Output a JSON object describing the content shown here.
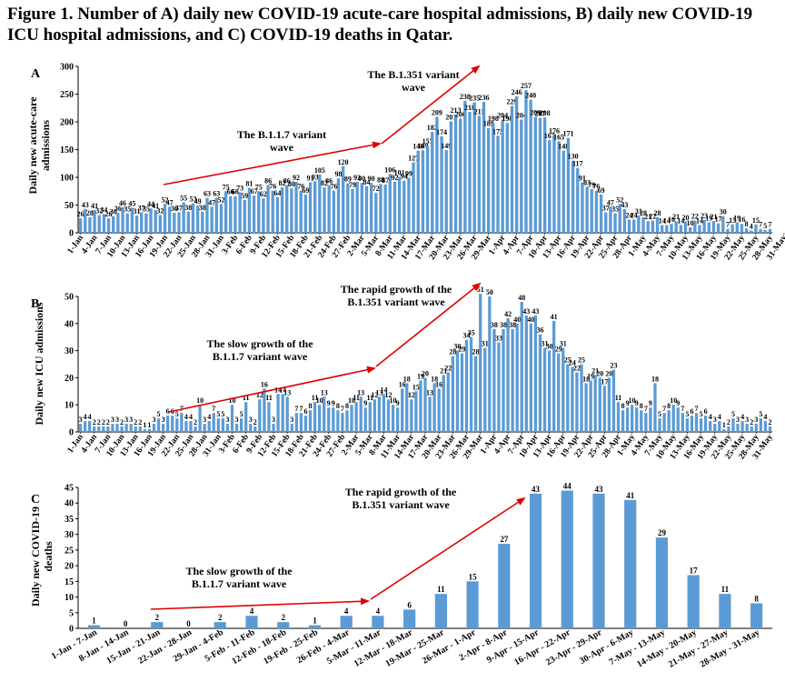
{
  "figure": {
    "title": "Figure 1. Number of A) daily new COVID-19 acute-care hospital admissions, B) daily new COVID-19 ICU hospital admissions, and C) COVID-19 deaths in Qatar."
  },
  "colors": {
    "bar": "#5b9bd5",
    "arrow": "#e00000",
    "text": "#000000"
  },
  "chart_data": [
    {
      "panel": "A",
      "type": "bar",
      "ylabel": "Daily new acute-care admissions",
      "ylim": [
        0,
        300
      ],
      "yticks": [
        0,
        50,
        100,
        150,
        200,
        250,
        300
      ],
      "start_date": "1-Jan",
      "x_tick_labels": [
        "1-Jan",
        "4-Jan",
        "7-Jan",
        "10-Jan",
        "13-Jan",
        "16-Jan",
        "19-Jan",
        "22-Jan",
        "25-Jan",
        "28-Jan",
        "31-Jan",
        "3-Feb",
        "6-Feb",
        "9-Feb",
        "12-Feb",
        "15-Feb",
        "18-Feb",
        "21-Feb",
        "24-Feb",
        "27-Feb",
        "2-Mar",
        "5-Mar",
        "8-Mar",
        "11-Mar",
        "14-Mar",
        "17-Mar",
        "20-Mar",
        "23-Mar",
        "26-Mar",
        "29-Mar",
        "1-Apr",
        "4-Apr",
        "7-Apr",
        "10-Apr",
        "13-Apr",
        "16-Apr",
        "19-Apr",
        "22-Apr",
        "25-Apr",
        "28-Apr",
        "1-May",
        "4-May",
        "7-May",
        "10-May",
        "13-May",
        "16-May",
        "19-May",
        "22-May",
        "25-May",
        "28-May",
        "31-May"
      ],
      "values": [
        26,
        43,
        28,
        41,
        32,
        34,
        26,
        30,
        36,
        46,
        35,
        45,
        31,
        37,
        35,
        44,
        41,
        32,
        52,
        47,
        36,
        37,
        55,
        38,
        53,
        49,
        38,
        63,
        47,
        63,
        52,
        75,
        66,
        66,
        73,
        59,
        81,
        67,
        75,
        62,
        86,
        76,
        64,
        82,
        86,
        80,
        92,
        76,
        69,
        91,
        93,
        105,
        82,
        86,
        76,
        98,
        120,
        89,
        79,
        92,
        90,
        84,
        90,
        72,
        88,
        87,
        106,
        92,
        101,
        94,
        99,
        127,
        148,
        149,
        157,
        182,
        209,
        174,
        149,
        201,
        213,
        206,
        238,
        218,
        235,
        211,
        236,
        189,
        198,
        175,
        204,
        198,
        229,
        246,
        204,
        257,
        240,
        209,
        207,
        208,
        167,
        176,
        165,
        148,
        171,
        130,
        117,
        91,
        83,
        79,
        76,
        69,
        37,
        47,
        35,
        52,
        43,
        24,
        24,
        31,
        28,
        21,
        22,
        28,
        14,
        14,
        16,
        21,
        14,
        20,
        10,
        22,
        14,
        23,
        19,
        21,
        17,
        30,
        7,
        15,
        19,
        16,
        8,
        4,
        15,
        7,
        5,
        7
      ],
      "annotations": [
        {
          "text": "The B.1.1.7 variant wave"
        },
        {
          "text": "The B.1.351 variant wave"
        }
      ]
    },
    {
      "panel": "B",
      "type": "bar",
      "ylabel": "Daily new ICU admissions",
      "ylim": [
        0,
        50
      ],
      "yticks": [
        0,
        10,
        20,
        30,
        40,
        50
      ],
      "start_date": "1-Jan",
      "x_tick_labels": [
        "1-Jan",
        "4-Jan",
        "7-Jan",
        "10-Jan",
        "13-Jan",
        "16-Jan",
        "19-Jan",
        "22-Jan",
        "25-Jan",
        "28-Jan",
        "31-Jan",
        "3-Feb",
        "6-Feb",
        "9-Feb",
        "12-Feb",
        "15-Feb",
        "18-Feb",
        "21-Feb",
        "24-Feb",
        "27-Feb",
        "2-Mar",
        "5-Mar",
        "8-Mar",
        "11-Mar",
        "14-Mar",
        "17-Mar",
        "20-Mar",
        "23-Mar",
        "26-Mar",
        "29-Mar",
        "1-Apr",
        "4-Apr",
        "7-Apr",
        "10-Apr",
        "13-Apr",
        "16-Apr",
        "19-Apr",
        "22-Apr",
        "25-Apr",
        "28-Apr",
        "1-May",
        "4-May",
        "7-May",
        "10-May",
        "13-May",
        "16-May",
        "19-May",
        "22-May",
        "25-May",
        "28-May",
        "31-May"
      ],
      "values": [
        3,
        4,
        4,
        2,
        2,
        2,
        2,
        3,
        3,
        2,
        3,
        3,
        2,
        2,
        1,
        1,
        3,
        5,
        3,
        6,
        6,
        5,
        7,
        4,
        4,
        2,
        10,
        3,
        4,
        7,
        5,
        5,
        3,
        10,
        3,
        5,
        11,
        3,
        2,
        12,
        16,
        11,
        3,
        14,
        14,
        13,
        3,
        7,
        7,
        6,
        8,
        11,
        10,
        13,
        9,
        9,
        8,
        7,
        8,
        10,
        11,
        13,
        9,
        11,
        12,
        13,
        14,
        12,
        10,
        9,
        16,
        18,
        12,
        15,
        19,
        20,
        13,
        18,
        16,
        21,
        22,
        28,
        30,
        29,
        34,
        35,
        28,
        51,
        31,
        50,
        38,
        33,
        38,
        42,
        38,
        40,
        48,
        43,
        40,
        43,
        36,
        31,
        30,
        41,
        29,
        31,
        25,
        24,
        22,
        25,
        18,
        19,
        21,
        20,
        17,
        20,
        23,
        11,
        8,
        9,
        10,
        9,
        8,
        7,
        9,
        18,
        5,
        7,
        8,
        10,
        9,
        7,
        5,
        6,
        7,
        5,
        6,
        4,
        3,
        4,
        1,
        2,
        5,
        3,
        4,
        3,
        2,
        3,
        5,
        4,
        2
      ],
      "annotations": [
        {
          "text": "The slow growth of the B.1.1.7 variant wave"
        },
        {
          "text": "The rapid growth of the B.1.351 variant wave"
        }
      ]
    },
    {
      "panel": "C",
      "type": "bar",
      "ylabel": "Daily new COVID-19 deaths",
      "ylim": [
        0,
        45
      ],
      "yticks": [
        0,
        5,
        10,
        15,
        20,
        25,
        30,
        35,
        40,
        45
      ],
      "categories": [
        "1-Jan - 7-Jan",
        "8-Jan - 14-Jan",
        "15-Jan - 21-Jan",
        "22-Jan - 28-Jan",
        "29-Jan - 4-Feb",
        "5-Feb - 11-Feb",
        "12-Feb - 18-Feb",
        "19-Feb - 25-Feb",
        "26-Feb - 4-Mar",
        "5-Mar - 11-Mar",
        "12-Mar - 18-Mar",
        "19-Mar - 25-Mar",
        "26-Mar - 1-Apr",
        "2-Apr - 8-Apr",
        "9-Apr - 15-Apr",
        "16-Apr - 22-Apr",
        "23-Apr - 29-Apr",
        "30-Apr - 6-May",
        "7-May - 13-May",
        "14-May - 20-May",
        "21-May - 27-May",
        "28-May - 31-May"
      ],
      "values": [
        1,
        0,
        2,
        0,
        2,
        4,
        2,
        1,
        4,
        4,
        6,
        11,
        15,
        27,
        43,
        44,
        43,
        41,
        29,
        17,
        11,
        8
      ],
      "annotations": [
        {
          "text": "The slow growth of the B.1.1.7 variant wave"
        },
        {
          "text": "The rapid growth of the B.1.351 variant wave"
        }
      ]
    }
  ]
}
